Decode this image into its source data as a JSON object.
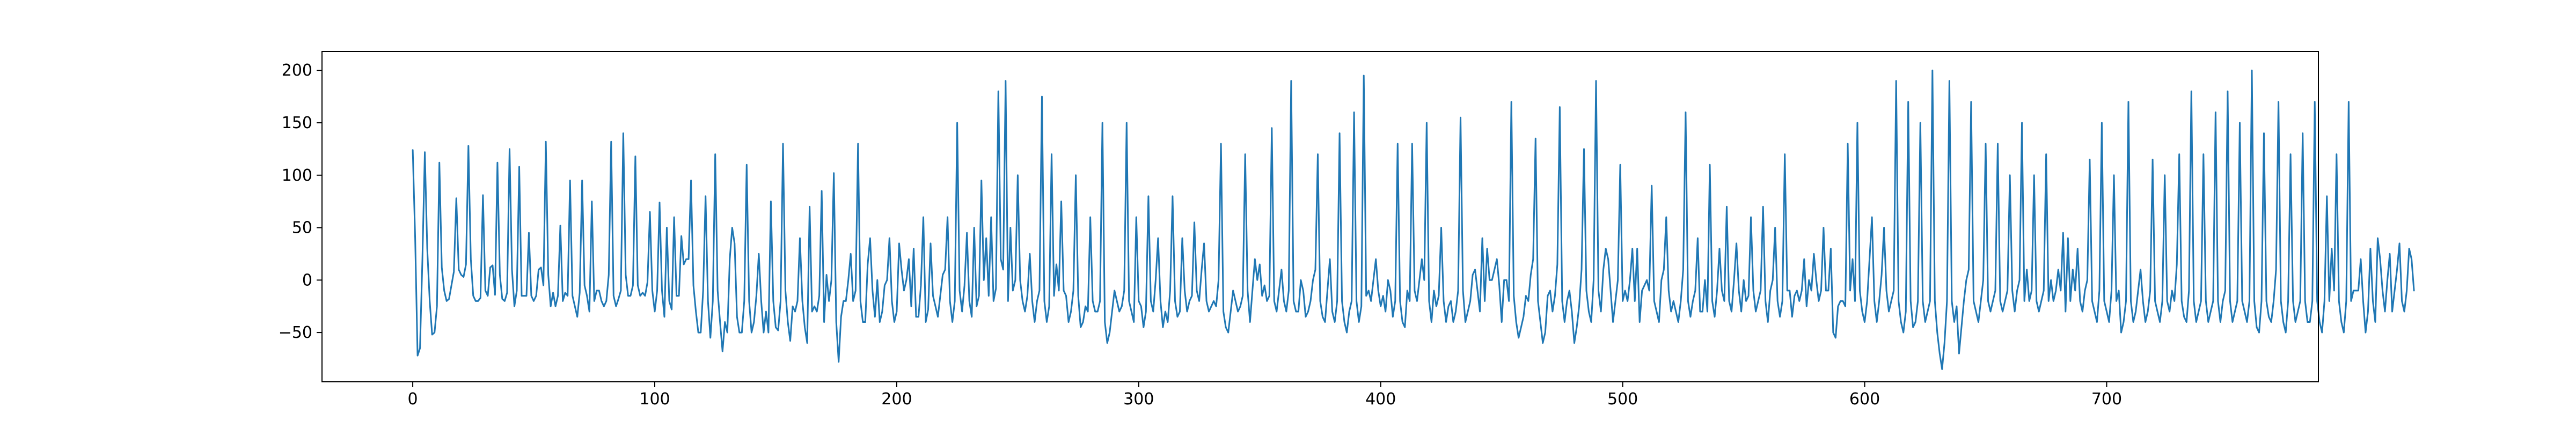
{
  "chart_data": {
    "type": "line",
    "title": "",
    "xlabel": "",
    "ylabel": "",
    "xlim": [
      -37.5,
      787.5
    ],
    "ylim": [
      -97,
      218
    ],
    "x_ticks": [
      0,
      100,
      200,
      300,
      400,
      500,
      600,
      700
    ],
    "y_ticks": [
      -50,
      0,
      50,
      100,
      150,
      200
    ],
    "grid": false,
    "legend": "none",
    "series": [
      {
        "color": "#1f77b4",
        "x_start": 0,
        "x_step": 1,
        "values": [
          124,
          40,
          -72,
          -65,
          20,
          122,
          30,
          -20,
          -52,
          -50,
          -25,
          112,
          12,
          -10,
          -20,
          -18,
          -5,
          8,
          78,
          10,
          5,
          3,
          15,
          128,
          20,
          -15,
          -20,
          -20,
          -17,
          81,
          -10,
          -15,
          12,
          14,
          -14,
          112,
          5,
          -18,
          -20,
          -12,
          125,
          10,
          -25,
          -10,
          108,
          -15,
          -15,
          -15,
          45,
          -15,
          -20,
          -15,
          10,
          12,
          -5,
          132,
          5,
          -25,
          -12,
          -25,
          -15,
          52,
          -20,
          -12,
          -15,
          95,
          -15,
          -25,
          -35,
          -12,
          95,
          -5,
          -15,
          -30,
          75,
          -20,
          -10,
          -10,
          -20,
          -25,
          -20,
          5,
          132,
          -15,
          -25,
          -18,
          -10,
          140,
          5,
          -15,
          -15,
          -5,
          118,
          -5,
          -15,
          -12,
          -15,
          -2,
          65,
          -10,
          -30,
          -10,
          74,
          -10,
          -35,
          50,
          -20,
          -28,
          60,
          -15,
          -15,
          42,
          15,
          20,
          20,
          95,
          -5,
          -30,
          -50,
          -50,
          -10,
          80,
          -20,
          -55,
          -20,
          120,
          -10,
          -40,
          -68,
          -40,
          -50,
          20,
          50,
          35,
          -35,
          -50,
          -50,
          -20,
          110,
          -20,
          -50,
          -40,
          -15,
          25,
          -20,
          -50,
          -30,
          -50,
          75,
          -20,
          -45,
          -48,
          -20,
          130,
          -10,
          -40,
          -58,
          -25,
          -30,
          -20,
          40,
          -20,
          -45,
          -60,
          70,
          -30,
          -25,
          -30,
          -15,
          85,
          -40,
          5,
          -20,
          0,
          102,
          -40,
          -78,
          -35,
          -20,
          -20,
          0,
          25,
          -20,
          -10,
          130,
          -20,
          -40,
          -40,
          15,
          40,
          -10,
          -35,
          0,
          -40,
          -30,
          -5,
          0,
          40,
          -20,
          -40,
          -30,
          35,
          10,
          -10,
          0,
          20,
          -25,
          30,
          -35,
          -35,
          -5,
          60,
          -40,
          -28,
          35,
          -15,
          -25,
          -35,
          -15,
          5,
          10,
          60,
          -20,
          -40,
          -20,
          150,
          -10,
          -30,
          -5,
          45,
          -20,
          -35,
          50,
          -25,
          -15,
          95,
          0,
          40,
          -15,
          60,
          -20,
          -8,
          180,
          20,
          10,
          190,
          -20,
          50,
          -10,
          0,
          100,
          0,
          -20,
          -30,
          -15,
          25,
          -20,
          -40,
          -20,
          -10,
          175,
          -20,
          -40,
          -25,
          120,
          -15,
          15,
          -10,
          75,
          -10,
          -15,
          -40,
          -30,
          -10,
          100,
          -15,
          -45,
          -40,
          -25,
          -30,
          60,
          -20,
          -30,
          -30,
          -20,
          150,
          -40,
          -60,
          -50,
          -30,
          -10,
          -20,
          -30,
          -25,
          -10,
          150,
          -20,
          -30,
          -40,
          60,
          -20,
          -25,
          -45,
          -30,
          80,
          -20,
          -30,
          0,
          40,
          -20,
          -45,
          -30,
          -40,
          -10,
          80,
          -20,
          -35,
          -30,
          40,
          -10,
          -30,
          -20,
          -15,
          55,
          -10,
          -20,
          10,
          35,
          -20,
          -30,
          -25,
          -20,
          -25,
          0,
          130,
          -30,
          -45,
          -50,
          -30,
          -10,
          -20,
          -30,
          -25,
          -15,
          120,
          -10,
          -40,
          -10,
          20,
          0,
          15,
          -15,
          -5,
          -20,
          -15,
          145,
          -20,
          -30,
          -10,
          10,
          -20,
          -30,
          -10,
          190,
          -20,
          -30,
          -30,
          0,
          -10,
          -35,
          -30,
          -20,
          0,
          10,
          120,
          -20,
          -35,
          -40,
          -10,
          20,
          -30,
          -40,
          -20,
          140,
          -20,
          -40,
          -50,
          -30,
          -20,
          160,
          -20,
          -40,
          -25,
          195,
          -15,
          -10,
          -20,
          0,
          20,
          -10,
          -25,
          -15,
          -30,
          0,
          -10,
          -35,
          -20,
          130,
          -20,
          -40,
          -45,
          -10,
          -20,
          130,
          -10,
          -20,
          0,
          20,
          0,
          150,
          -20,
          -40,
          -10,
          -25,
          -15,
          50,
          -20,
          -40,
          -25,
          -20,
          -40,
          -30,
          -10,
          155,
          -10,
          -40,
          -30,
          -20,
          5,
          10,
          -10,
          -30,
          40,
          -20,
          30,
          0,
          0,
          10,
          20,
          -5,
          -40,
          0,
          0,
          -20,
          170,
          -15,
          -40,
          -55,
          -45,
          -35,
          -15,
          -20,
          5,
          20,
          135,
          -20,
          -40,
          -60,
          -50,
          -15,
          -10,
          -30,
          -15,
          15,
          165,
          -20,
          -40,
          -20,
          -10,
          -30,
          -60,
          -45,
          -25,
          10,
          125,
          -10,
          -30,
          -40,
          0,
          190,
          -10,
          -30,
          10,
          30,
          20,
          -10,
          -40,
          -20,
          0,
          110,
          -20,
          -10,
          -20,
          0,
          30,
          -20,
          30,
          -40,
          -10,
          -5,
          0,
          -10,
          90,
          -20,
          -30,
          -40,
          0,
          10,
          60,
          -10,
          -30,
          -20,
          -30,
          -40,
          -20,
          10,
          160,
          -20,
          -35,
          -20,
          -10,
          40,
          -30,
          -30,
          0,
          -30,
          110,
          -20,
          -35,
          -10,
          30,
          -10,
          -20,
          70,
          -20,
          -30,
          0,
          35,
          -10,
          -30,
          0,
          -20,
          -15,
          60,
          -10,
          -30,
          -20,
          -10,
          70,
          -20,
          -40,
          -10,
          0,
          50,
          -20,
          -35,
          -20,
          120,
          -10,
          -10,
          -35,
          -15,
          -10,
          -20,
          -10,
          20,
          -25,
          0,
          -10,
          25,
          0,
          -20,
          -10,
          50,
          -10,
          -10,
          30,
          -50,
          -55,
          -25,
          -20,
          -20,
          -25,
          130,
          -10,
          20,
          -20,
          150,
          -10,
          -30,
          -40,
          -20,
          20,
          60,
          -20,
          -40,
          -20,
          5,
          50,
          -10,
          -30,
          -20,
          -10,
          190,
          -20,
          -40,
          -50,
          -30,
          170,
          -20,
          -45,
          -40,
          -20,
          150,
          -20,
          -40,
          -30,
          -20,
          200,
          -20,
          -50,
          -70,
          -85,
          -60,
          -20,
          190,
          -20,
          -40,
          -25,
          -70,
          -45,
          -20,
          0,
          10,
          170,
          -20,
          -30,
          -40,
          -20,
          0,
          130,
          -20,
          -30,
          -20,
          -10,
          130,
          -20,
          -30,
          -20,
          -10,
          100,
          -10,
          -30,
          -10,
          0,
          150,
          -20,
          10,
          -20,
          -10,
          100,
          -20,
          -30,
          -20,
          -10,
          120,
          -20,
          0,
          -20,
          -10,
          10,
          -10,
          45,
          -30,
          40,
          -20,
          10,
          -10,
          30,
          -20,
          -30,
          -10,
          0,
          115,
          -20,
          -30,
          -40,
          -10,
          150,
          -20,
          -30,
          -40,
          -10,
          100,
          -20,
          -10,
          -50,
          -40,
          -20,
          170,
          -20,
          -40,
          -30,
          -10,
          10,
          -20,
          -40,
          -30,
          -10,
          115,
          -20,
          -30,
          -40,
          -20,
          100,
          -20,
          -30,
          -10,
          -20,
          15,
          120,
          -20,
          -35,
          -40,
          -10,
          180,
          -20,
          -40,
          -30,
          -20,
          120,
          -20,
          -40,
          -30,
          -20,
          160,
          -20,
          -40,
          -20,
          -10,
          180,
          -20,
          -40,
          -30,
          -20,
          150,
          -20,
          -30,
          -40,
          -20,
          200,
          -20,
          -45,
          -50,
          -20,
          140,
          -20,
          -35,
          -40,
          -20,
          10,
          170,
          -20,
          -40,
          -50,
          -20,
          120,
          -20,
          -40,
          -30,
          -20,
          140,
          -20,
          -40,
          -40,
          -20,
          170,
          -20,
          -40,
          -50,
          -20,
          80,
          -20,
          30,
          -10,
          120,
          -20,
          -40,
          -50,
          -20,
          170,
          -20,
          -10,
          -10,
          -10,
          20,
          -20,
          -50,
          -30,
          30,
          -20,
          -40,
          40,
          20,
          -10,
          -30,
          0,
          25,
          -30,
          -10,
          10,
          35,
          -20,
          -30,
          -10,
          30,
          20,
          -10
        ]
      }
    ]
  }
}
